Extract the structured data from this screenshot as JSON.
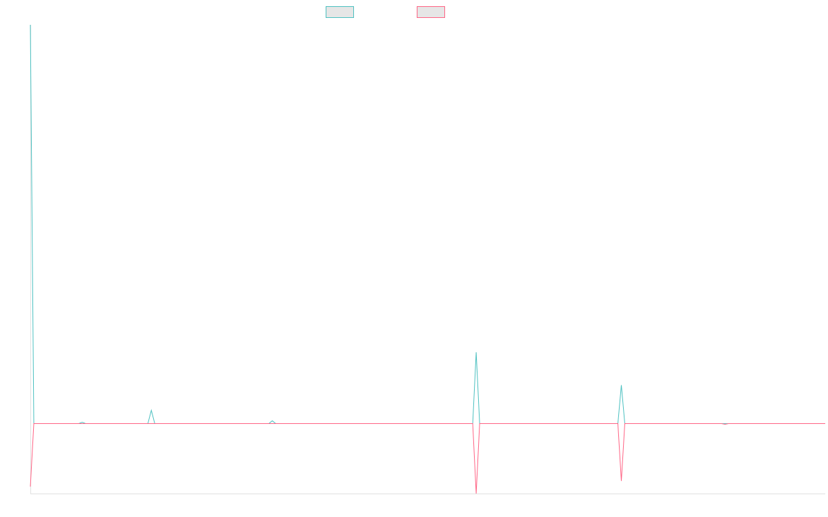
{
  "chart_data": {
    "type": "line",
    "title": "",
    "xlabel": "",
    "ylabel": "",
    "grid": false,
    "legend_placement": "top-center",
    "x": [
      0,
      1,
      2,
      3,
      4,
      5,
      6,
      7,
      8,
      9,
      10,
      11,
      12,
      13,
      14,
      15,
      16,
      17,
      18,
      19,
      20,
      21,
      22,
      23,
      24,
      25,
      26,
      27,
      28,
      29,
      30,
      31,
      32,
      33,
      34,
      35,
      36,
      37,
      38,
      39,
      40,
      41,
      42,
      43,
      44,
      45,
      46,
      47,
      48,
      49,
      50,
      51,
      52,
      53,
      54,
      55,
      56,
      57,
      58,
      59,
      60,
      61,
      62,
      63,
      64,
      65,
      66,
      67,
      68,
      69,
      70,
      71,
      72,
      73,
      74,
      75,
      76,
      77,
      78,
      79,
      80,
      81,
      82,
      83,
      84,
      85,
      86,
      87,
      88,
      89,
      90,
      91,
      92,
      93,
      94,
      95,
      96,
      97,
      98,
      99,
      100,
      101,
      102,
      103,
      104,
      105,
      106,
      107,
      108,
      109,
      110,
      111,
      112,
      113,
      114,
      115,
      116,
      117,
      118,
      119,
      120,
      121,
      122,
      123,
      124,
      125,
      126,
      127,
      128,
      129,
      130,
      131,
      132,
      133,
      134,
      135,
      136,
      137,
      138,
      139,
      140,
      141,
      142,
      143,
      144,
      145,
      146,
      147,
      148,
      149,
      150,
      151,
      152,
      153,
      154,
      155,
      156,
      157,
      158,
      159,
      160,
      161,
      162,
      163,
      164,
      165,
      166,
      167,
      168,
      169,
      170,
      171,
      172,
      173,
      174,
      175,
      176,
      177,
      178,
      179,
      180,
      181,
      182,
      183,
      184,
      185,
      186,
      187,
      188,
      189,
      190,
      191,
      192,
      193,
      194,
      195,
      196,
      197,
      198,
      199,
      200,
      201,
      202,
      203,
      204,
      205,
      206,
      207,
      208,
      209,
      210,
      211,
      212,
      213,
      214,
      215,
      216,
      217,
      218,
      219,
      220,
      221,
      222,
      223,
      224,
      225,
      226,
      227,
      228,
      229,
      230
    ],
    "ylim": [
      -100,
      570
    ],
    "series": [
      {
        "color": "#4bc0c0",
        "points": [
          [
            0,
            570
          ],
          [
            1,
            0
          ],
          [
            14,
            0
          ],
          [
            15,
            2
          ],
          [
            16,
            0
          ],
          [
            34,
            0
          ],
          [
            35,
            19
          ],
          [
            36,
            0
          ],
          [
            69,
            0
          ],
          [
            70,
            4
          ],
          [
            71,
            0
          ],
          [
            128,
            0
          ],
          [
            129,
            102
          ],
          [
            130,
            0
          ],
          [
            170,
            0
          ],
          [
            171,
            55
          ],
          [
            172,
            0
          ],
          [
            230,
            0
          ]
        ]
      },
      {
        "color": "#ff6384",
        "points": [
          [
            0,
            -90
          ],
          [
            1,
            0
          ],
          [
            128,
            0
          ],
          [
            129,
            -100
          ],
          [
            130,
            0
          ],
          [
            170,
            0
          ],
          [
            171,
            -82
          ],
          [
            172,
            0
          ],
          [
            200,
            0
          ],
          [
            201,
            -1
          ],
          [
            202,
            0
          ],
          [
            230,
            0
          ]
        ]
      }
    ]
  }
}
